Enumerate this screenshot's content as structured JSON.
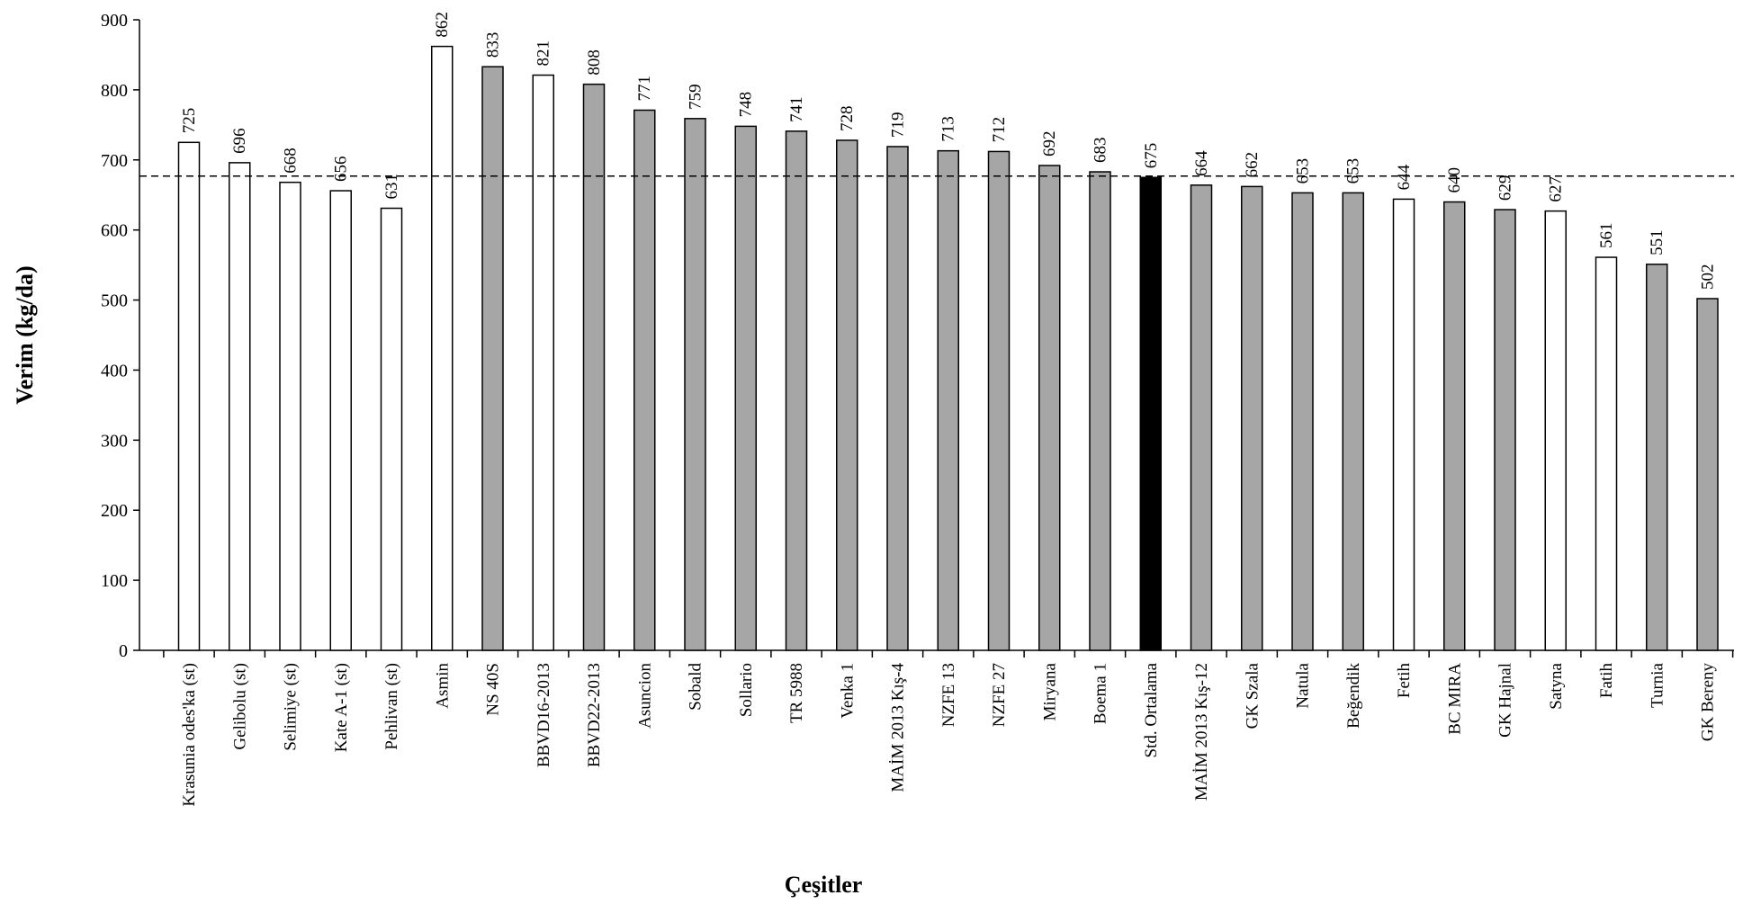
{
  "chart_data": {
    "type": "bar",
    "title": "",
    "xlabel": "Çeşitler",
    "ylabel": "Verim (kg/da)",
    "ylim": [
      0,
      900
    ],
    "yticks": [
      0,
      100,
      200,
      300,
      400,
      500,
      600,
      700,
      800,
      900
    ],
    "grid": false,
    "reference_line": {
      "value": 677,
      "style": "dashed"
    },
    "categories": [
      "Krasunia odes'ka (st)",
      "Gelibolu (st)",
      "Selimiye (st)",
      "Kate A-1 (st)",
      "Pehlivan (st)",
      "Asmin",
      "NS 40S",
      "BBVD16-2013",
      "BBVD22-2013",
      "Asuncion",
      "Sobald",
      "Sollario",
      "TR 5988",
      "Venka 1",
      "MAİM 2013 Kış-4",
      "NZFE 13",
      "NZFE 27",
      "Miryana",
      "Boema 1",
      "Std. Ortalama",
      "MAİM 2013 Kış-12",
      "GK Szala",
      "Natula",
      "Beğendik",
      "Fetih",
      "BC MIRA",
      "GK Hajnal",
      "Satyna",
      "Fatih",
      "Turnia",
      "GK Bereny"
    ],
    "values": [
      725,
      696,
      668,
      656,
      631,
      862,
      833,
      821,
      808,
      771,
      759,
      748,
      741,
      728,
      719,
      713,
      712,
      692,
      683,
      675,
      664,
      662,
      653,
      653,
      644,
      640,
      629,
      627,
      561,
      551,
      502
    ],
    "bar_fill": [
      "white",
      "white",
      "white",
      "white",
      "white",
      "white",
      "gray",
      "white",
      "gray",
      "gray",
      "gray",
      "gray",
      "gray",
      "gray",
      "gray",
      "gray",
      "gray",
      "gray",
      "gray",
      "black",
      "gray",
      "gray",
      "gray",
      "gray",
      "white",
      "gray",
      "gray",
      "white",
      "white",
      "gray",
      "gray"
    ],
    "colors": {
      "white": "#ffffff",
      "gray": "#a6a6a6",
      "black": "#000000",
      "stroke": "#000000"
    }
  }
}
